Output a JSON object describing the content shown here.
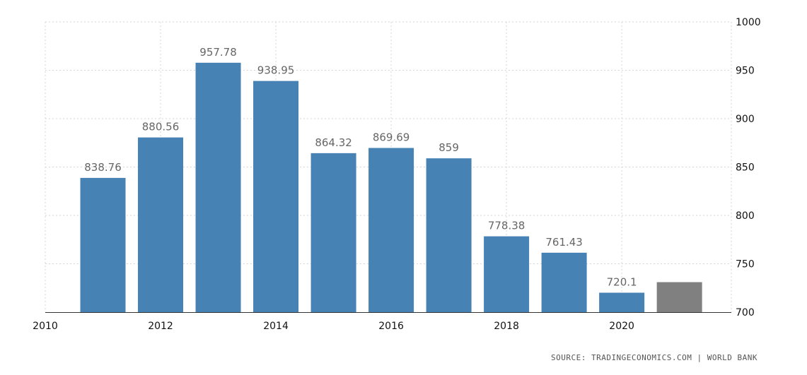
{
  "chart_data": {
    "type": "bar",
    "title": "",
    "xlabel": "",
    "ylabel": "",
    "x": [
      2011,
      2012,
      2013,
      2014,
      2015,
      2016,
      2017,
      2018,
      2019,
      2020,
      2021
    ],
    "values": [
      838.76,
      880.56,
      957.78,
      938.95,
      864.32,
      869.69,
      859,
      778.38,
      761.43,
      720.1,
      731
    ],
    "data_labels": [
      "838.76",
      "880.56",
      "957.78",
      "938.95",
      "864.32",
      "869.69",
      "859",
      "778.38",
      "761.43",
      "720.1",
      ""
    ],
    "bar_colors": [
      "#4682b4",
      "#4682b4",
      "#4682b4",
      "#4682b4",
      "#4682b4",
      "#4682b4",
      "#4682b4",
      "#4682b4",
      "#4682b4",
      "#4682b4",
      "#808080"
    ],
    "xlim": [
      2010,
      2021.9
    ],
    "ylim": [
      700,
      1000
    ],
    "x_ticks": [
      2010,
      2012,
      2014,
      2016,
      2018,
      2020
    ],
    "x_tick_labels": [
      "2010",
      "2012",
      "2014",
      "2016",
      "2018",
      "2020"
    ],
    "y_ticks": [
      700,
      750,
      800,
      850,
      900,
      950,
      1000
    ],
    "y_tick_labels": [
      "700",
      "750",
      "800",
      "850",
      "900",
      "950",
      "1000"
    ],
    "y_axis_position": "right",
    "grid": true
  },
  "source": "SOURCE: TRADINGECONOMICS.COM  |  WORLD BANK"
}
